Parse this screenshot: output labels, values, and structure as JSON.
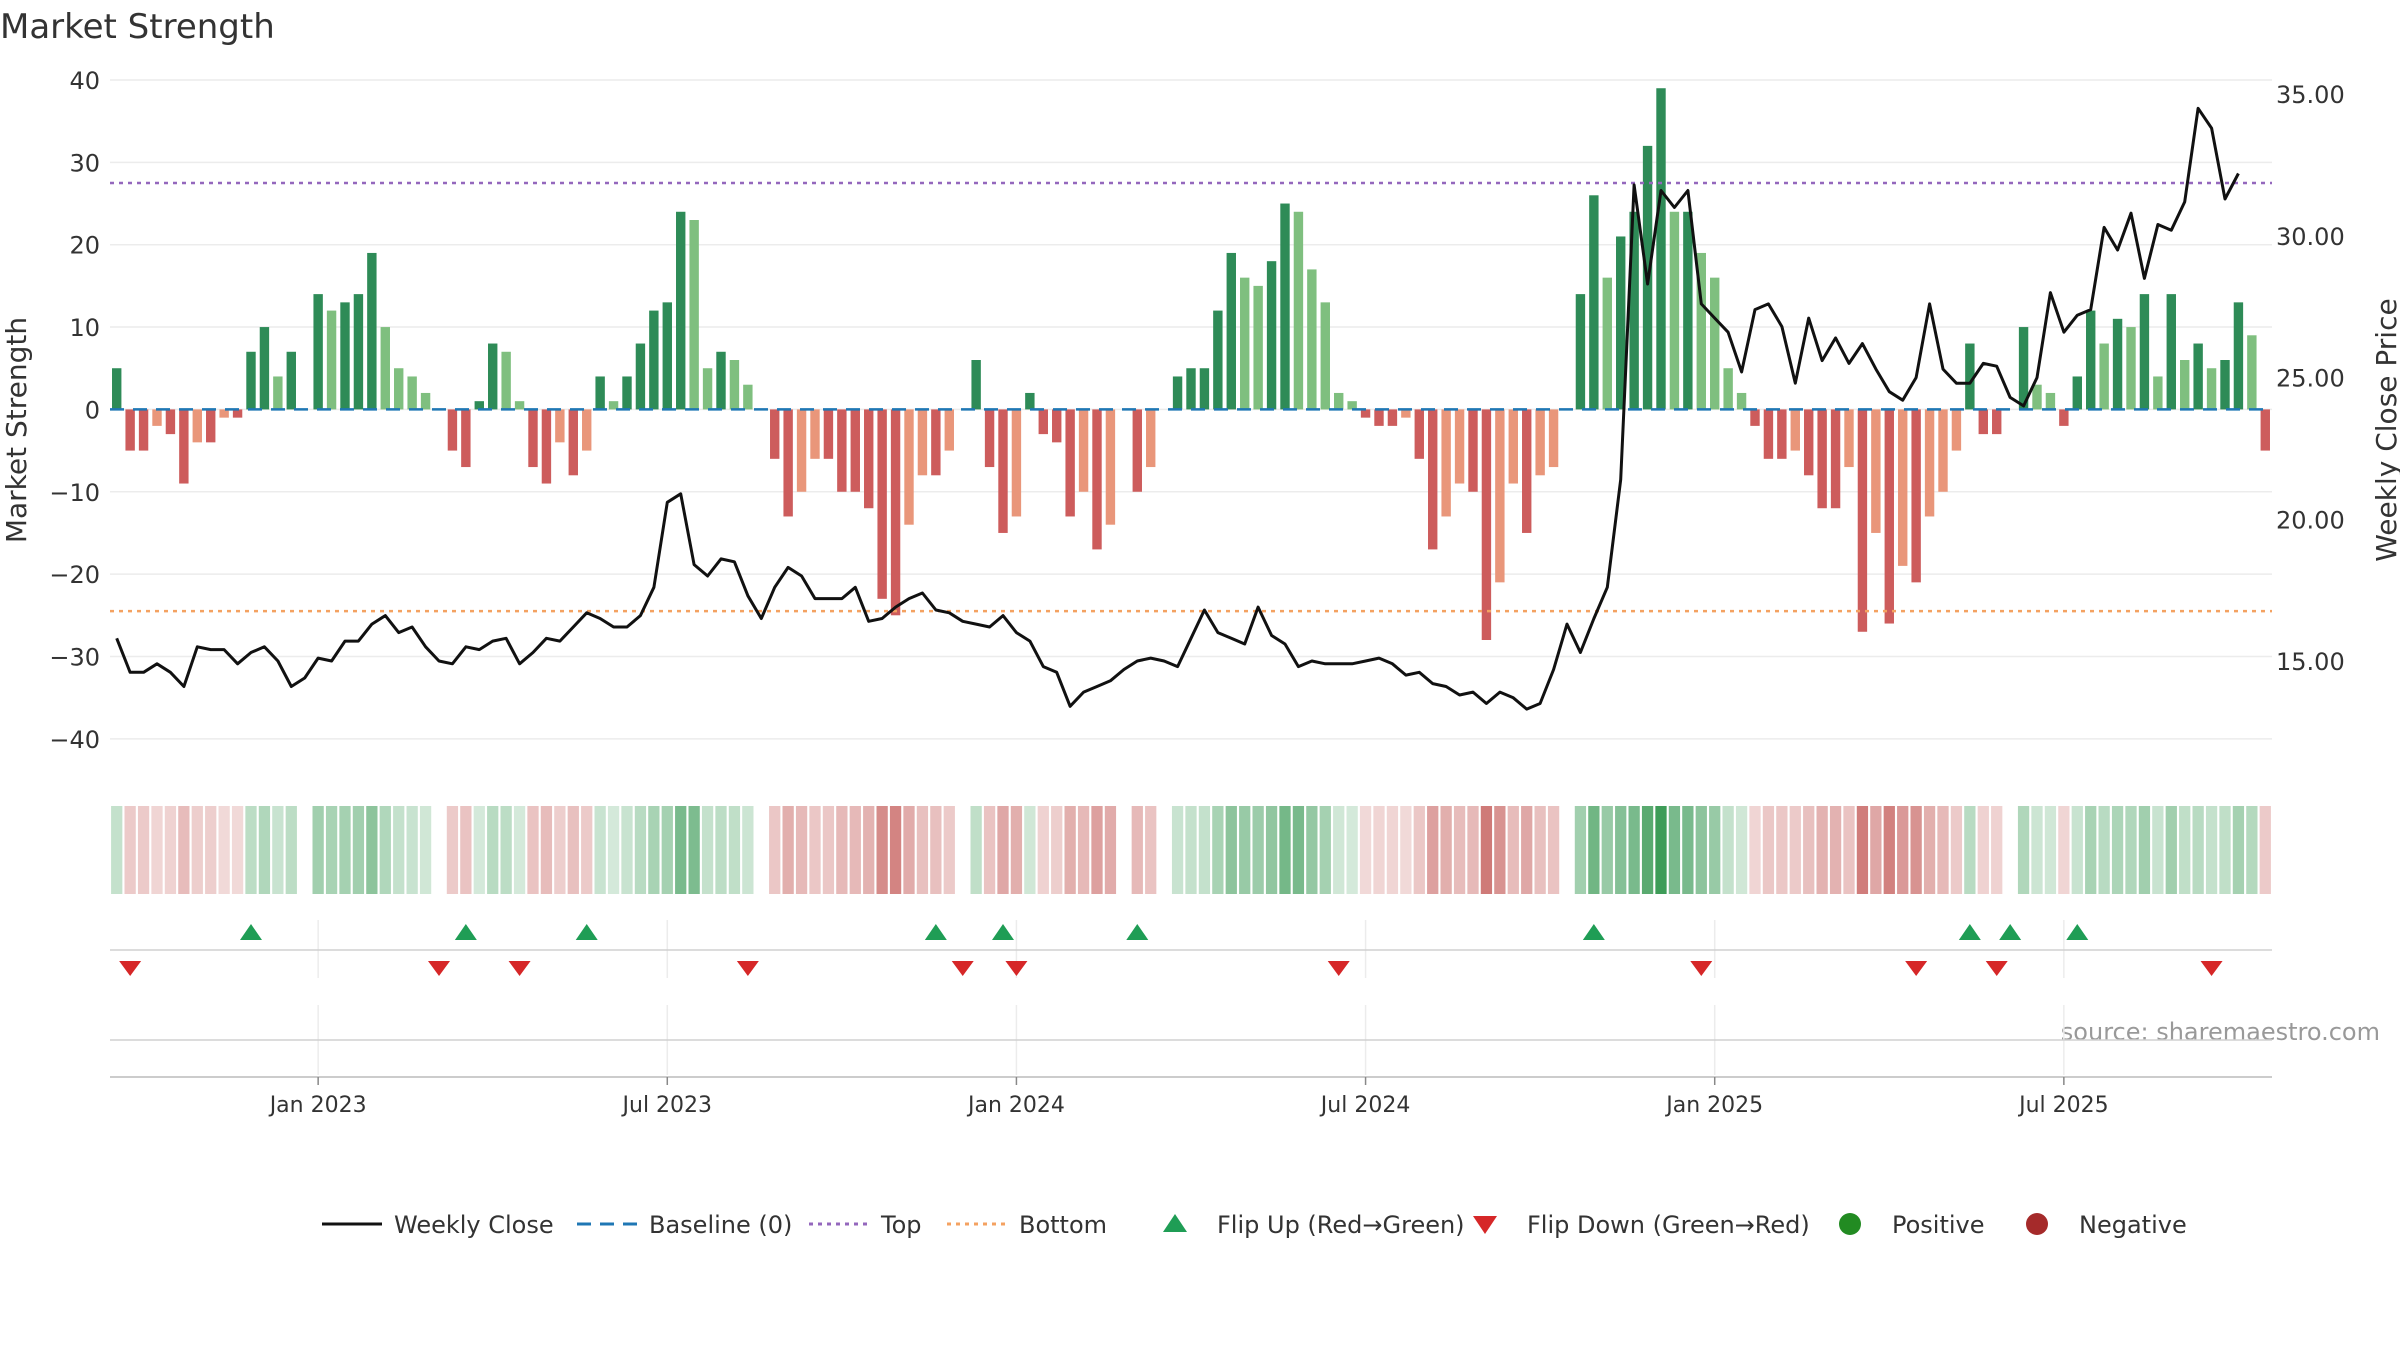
{
  "chart_data": {
    "type": "bar",
    "title": "Market Strength",
    "ylabel_left": "Market Strength",
    "ylabel_right": "Weekly Close Price",
    "left_ylim": [
      -45,
      40
    ],
    "left_yticks": [
      "40",
      "30",
      "20",
      "10",
      "0",
      "−10",
      "−20",
      "−30",
      "−40"
    ],
    "left_ytick_values": [
      40,
      30,
      20,
      10,
      0,
      -10,
      -20,
      -30,
      -40
    ],
    "right_ylim": [
      10.8,
      35.5
    ],
    "right_yticks": [
      "35.00",
      "30.00",
      "25.00",
      "20.00",
      "15.00"
    ],
    "right_ytick_values": [
      35,
      30,
      25,
      20,
      15
    ],
    "x_start_index": 0,
    "x_ticks": [
      {
        "label": "Jan 2023",
        "week": 15
      },
      {
        "label": "Jul 2023",
        "week": 41
      },
      {
        "label": "Jan 2024",
        "week": 67
      },
      {
        "label": "Jul 2024",
        "week": 93
      },
      {
        "label": "Jan 2025",
        "week": 119
      },
      {
        "label": "Jul 2025",
        "week": 145
      }
    ],
    "top_level": 27.5,
    "bottom_level": -24.5,
    "strength": [
      5,
      -5,
      -5,
      -2,
      -3,
      -9,
      -4,
      -4,
      -1,
      -1,
      7,
      10,
      4,
      7,
      0,
      14,
      12,
      13,
      14,
      19,
      10,
      5,
      4,
      2,
      0,
      -5,
      -7,
      1,
      8,
      7,
      1,
      -7,
      -9,
      -4,
      -8,
      -5,
      4,
      1,
      4,
      8,
      12,
      13,
      24,
      23,
      5,
      7,
      6,
      3,
      0,
      -6,
      -13,
      -10,
      -6,
      -6,
      -10,
      -10,
      -12,
      -23,
      -25,
      -14,
      -8,
      -8,
      -5,
      0,
      6,
      -7,
      -15,
      -13,
      2,
      -3,
      -4,
      -13,
      -10,
      -17,
      -14,
      0,
      -10,
      -7,
      0,
      4,
      5,
      5,
      12,
      19,
      16,
      15,
      18,
      25,
      24,
      17,
      13,
      2,
      1,
      -1,
      -2,
      -2,
      -1,
      -6,
      -17,
      -13,
      -9,
      -10,
      -28,
      -21,
      -9,
      -15,
      -8,
      -7,
      0,
      14,
      26,
      16,
      21,
      24,
      32,
      39,
      24,
      24,
      19,
      16,
      5,
      2,
      -2,
      -6,
      -6,
      -5,
      -8,
      -12,
      -12,
      -7,
      -27,
      -15,
      -26,
      -19,
      -21,
      -13,
      -10,
      -5,
      8,
      -3,
      -3,
      0,
      10,
      3,
      2,
      -2,
      4,
      12,
      8,
      11,
      10,
      14,
      4,
      14,
      6,
      8,
      5,
      6,
      13,
      9,
      -5
    ],
    "weekly_close": [
      15.8,
      14.6,
      14.6,
      14.9,
      14.6,
      14.1,
      15.5,
      15.4,
      15.4,
      14.9,
      15.3,
      15.5,
      15.0,
      14.1,
      14.4,
      15.1,
      15.0,
      15.7,
      15.7,
      16.3,
      16.6,
      16.0,
      16.2,
      15.5,
      15.0,
      14.9,
      15.5,
      15.4,
      15.7,
      15.8,
      14.9,
      15.3,
      15.8,
      15.7,
      16.2,
      16.7,
      16.5,
      16.2,
      16.2,
      16.6,
      17.6,
      20.6,
      20.9,
      18.4,
      18.0,
      18.6,
      18.5,
      17.3,
      16.5,
      17.6,
      18.3,
      18.0,
      17.2,
      17.2,
      17.2,
      17.6,
      16.4,
      16.5,
      16.9,
      17.2,
      17.4,
      16.8,
      16.7,
      16.4,
      16.3,
      16.2,
      16.6,
      16.0,
      15.7,
      14.8,
      14.6,
      13.4,
      13.9,
      14.1,
      14.3,
      14.7,
      15.0,
      15.1,
      15.0,
      14.8,
      15.8,
      16.8,
      16.0,
      15.8,
      15.6,
      16.9,
      15.9,
      15.6,
      14.8,
      15.0,
      14.9,
      14.9,
      14.9,
      15.0,
      15.1,
      14.9,
      14.5,
      14.6,
      14.2,
      14.1,
      13.8,
      13.9,
      13.5,
      13.9,
      13.7,
      13.3,
      13.5,
      14.7,
      16.3,
      15.3,
      16.5,
      17.6,
      21.4,
      31.8,
      28.3,
      31.6,
      31.0,
      31.6,
      27.6,
      27.1,
      26.6,
      25.2,
      27.4,
      27.6,
      26.8,
      24.8,
      27.1,
      25.6,
      26.4,
      25.5,
      26.2,
      25.3,
      24.5,
      24.2,
      25.0,
      27.6,
      25.3,
      24.8,
      24.8,
      25.5,
      25.4,
      24.3,
      24.0,
      25.0,
      28.0,
      26.6,
      27.2,
      27.4,
      30.3,
      29.5,
      30.8,
      28.5,
      30.4,
      30.2,
      31.2,
      34.5,
      33.8,
      31.3,
      32.2
    ],
    "flip_up_weeks": [
      10,
      26,
      35,
      61,
      66,
      76,
      110,
      138,
      141,
      146
    ],
    "flip_down_weeks": [
      1,
      24,
      30,
      47,
      63,
      67,
      91,
      118,
      134,
      140,
      156
    ],
    "legend": [
      {
        "label": "Weekly Close",
        "marker": "line-solid",
        "color": "#111111"
      },
      {
        "label": "Baseline (0)",
        "marker": "line-dash",
        "color": "#1f77b4"
      },
      {
        "label": "Top",
        "marker": "line-dot",
        "color": "#9467bd"
      },
      {
        "label": "Bottom",
        "marker": "line-dot",
        "color": "#f4a261"
      },
      {
        "label": "Flip Up (Red→Green)",
        "marker": "triangle-up",
        "color": "#1f9d55"
      },
      {
        "label": "Flip Down (Green→Red)",
        "marker": "triangle-down",
        "color": "#d62728"
      },
      {
        "label": "Positive",
        "marker": "circle",
        "color": "#228b22"
      },
      {
        "label": "Negative",
        "marker": "circle",
        "color": "#a52a2a"
      }
    ],
    "legend_position": "bottom-center",
    "grid": true
  },
  "source_note": "source: sharemaestro.com",
  "colors": {
    "pos_rising": "#2e8b57",
    "pos_falling": "#7fbf7f",
    "neg_falling": "#cd5c5c",
    "neg_rising": "#e9967a",
    "top_line": "#9467bd",
    "bottom_line": "#f4a261",
    "baseline": "#1f77b4",
    "close_line": "#111111",
    "flip_up": "#1f9d55",
    "flip_down": "#d62728"
  }
}
